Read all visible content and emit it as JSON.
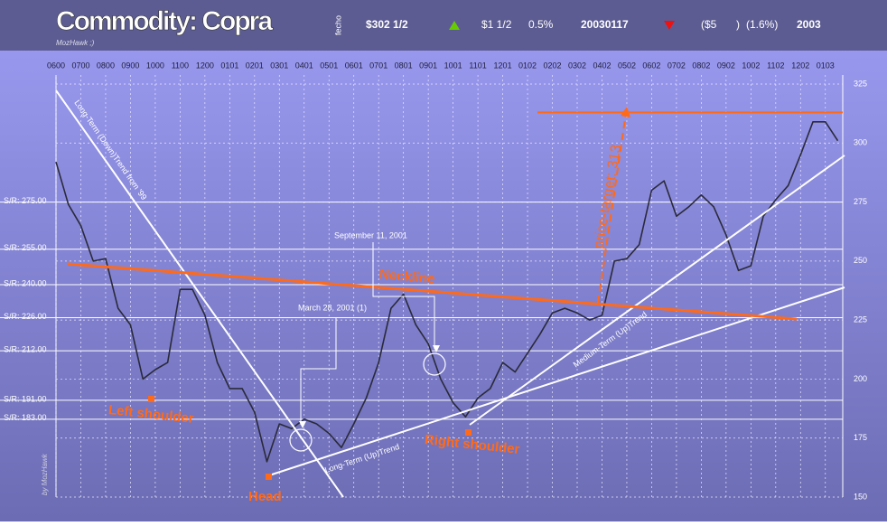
{
  "chart_data": {
    "type": "line",
    "title": "Commodity: Copra",
    "subtitle": "MozHawk ;)",
    "header": {
      "label": "fecho",
      "price": "$302 1/2",
      "change": "$1 1/2",
      "change_pct": "0.5%",
      "date": "20030117",
      "year_change": "($5",
      "year_change_close": ")",
      "year_change_pct": "(1.6%)",
      "year": "2003"
    },
    "x": [
      0,
      0.5,
      1,
      1.5,
      2,
      2.5,
      3,
      3.5,
      4,
      4.5,
      5,
      5.5,
      6,
      6.5,
      7,
      7.5,
      8,
      8.5,
      9,
      9.5,
      10,
      10.5,
      11,
      11.5,
      12,
      12.5,
      13,
      13.5,
      14,
      14.5,
      15,
      15.5,
      16,
      16.5,
      17,
      17.5,
      18,
      18.5,
      19,
      19.5,
      20,
      20.5,
      21,
      21.5,
      22,
      22.5,
      23,
      23.5,
      24,
      24.5,
      25,
      25.5,
      26,
      26.5,
      27,
      27.5,
      28,
      28.5,
      29,
      29.5,
      30,
      30.5,
      31,
      31.5
    ],
    "series": [
      {
        "name": "Copra",
        "color": "#2a2a3a",
        "values": [
          292,
          274,
          265,
          250,
          251,
          230,
          223,
          200,
          204,
          207,
          238,
          238,
          227,
          207,
          196,
          196,
          186,
          165,
          181,
          179,
          183,
          181,
          177,
          171,
          181,
          192,
          207,
          230,
          236,
          223,
          215,
          200,
          190,
          184,
          192,
          196,
          207,
          203,
          211,
          219,
          228,
          230,
          228,
          225,
          227,
          250,
          251,
          257,
          280,
          284,
          269,
          273,
          278,
          273,
          261,
          246,
          248,
          269,
          276,
          282,
          295,
          309,
          309,
          301
        ]
      }
    ],
    "xlim": [
      0,
      31.7
    ],
    "xticks": [
      {
        "value": 0,
        "label": "0600"
      },
      {
        "value": 1,
        "label": "0700"
      },
      {
        "value": 2,
        "label": "0800"
      },
      {
        "value": 3,
        "label": "0900"
      },
      {
        "value": 4,
        "label": "1000"
      },
      {
        "value": 5,
        "label": "1100"
      },
      {
        "value": 6,
        "label": "1200"
      },
      {
        "value": 7,
        "label": "0101"
      },
      {
        "value": 8,
        "label": "0201"
      },
      {
        "value": 9,
        "label": "0301"
      },
      {
        "value": 10,
        "label": "0401"
      },
      {
        "value": 11,
        "label": "0501"
      },
      {
        "value": 12,
        "label": "0601"
      },
      {
        "value": 13,
        "label": "0701"
      },
      {
        "value": 14,
        "label": "0801"
      },
      {
        "value": 15,
        "label": "0901"
      },
      {
        "value": 16,
        "label": "1001"
      },
      {
        "value": 17,
        "label": "1101"
      },
      {
        "value": 18,
        "label": "1201"
      },
      {
        "value": 19,
        "label": "0102"
      },
      {
        "value": 20,
        "label": "0202"
      },
      {
        "value": 21,
        "label": "0302"
      },
      {
        "value": 22,
        "label": "0402"
      },
      {
        "value": 23,
        "label": "0502"
      },
      {
        "value": 24,
        "label": "0602"
      },
      {
        "value": 25,
        "label": "0702"
      },
      {
        "value": 26,
        "label": "0802"
      },
      {
        "value": 27,
        "label": "0902"
      },
      {
        "value": 28,
        "label": "1002"
      },
      {
        "value": 29,
        "label": "1102"
      },
      {
        "value": 30,
        "label": "1202"
      },
      {
        "value": 31,
        "label": "0103"
      }
    ],
    "ylim": [
      150,
      325
    ],
    "yticks": [
      150,
      175,
      200,
      225,
      250,
      275,
      300,
      325
    ],
    "sr_levels": [
      {
        "value": 275,
        "label": "S/R: 275.00"
      },
      {
        "value": 255,
        "label": "S/R: 255.00"
      },
      {
        "value": 240,
        "label": "S/R: 240.00"
      },
      {
        "value": 226,
        "label": "S/R: 226.00"
      },
      {
        "value": 212,
        "label": "S/R: 212.00"
      },
      {
        "value": 191,
        "label": "S/R: 191.00"
      },
      {
        "value": 183,
        "label": "S/R: 183.00"
      }
    ],
    "target": 313,
    "grid": true,
    "annotations": {
      "downtrend": "Long-Term (Down)Trend from '99",
      "neckline": "Neckline",
      "sept": "September 11, 2001",
      "march": "March 28, 2001 (1)",
      "left": "Left shoulder",
      "head": "Head",
      "right": "Right shoulder",
      "uptrend": "Long-Term (Up)Trend",
      "medium": "Medium-Term (Up)Trend",
      "target": "price-target: 313",
      "author": "by MozHawk"
    }
  }
}
